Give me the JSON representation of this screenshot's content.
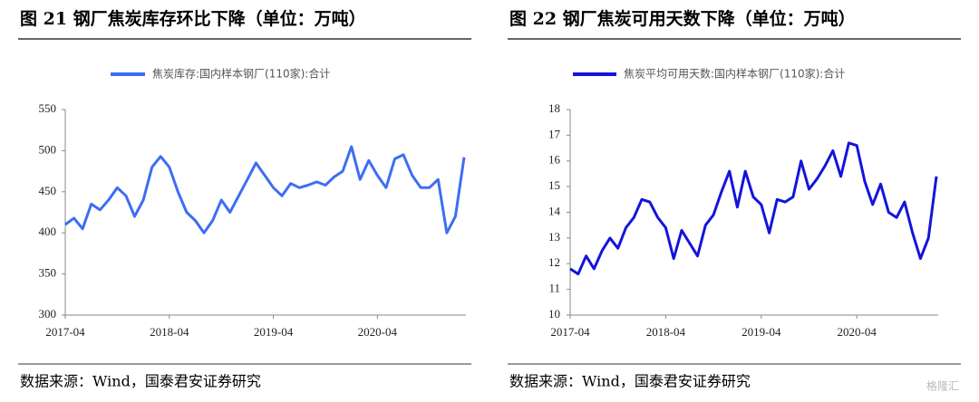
{
  "chart_data": [
    {
      "type": "line",
      "title": "图 21  钢厂焦炭库存环比下降（单位：万吨）",
      "source": "数据来源：Wind，国泰君安证券研究",
      "x": [
        "2017-04",
        "2017-05",
        "2017-06",
        "2017-07",
        "2017-08",
        "2017-09",
        "2017-10",
        "2017-11",
        "2017-12",
        "2018-01",
        "2018-02",
        "2018-03",
        "2018-04",
        "2018-05",
        "2018-06",
        "2018-07",
        "2018-08",
        "2018-09",
        "2018-10",
        "2018-11",
        "2018-12",
        "2019-01",
        "2019-02",
        "2019-03",
        "2019-04",
        "2019-05",
        "2019-06",
        "2019-07",
        "2019-08",
        "2019-09",
        "2019-10",
        "2019-11",
        "2019-12",
        "2020-01",
        "2020-02",
        "2020-03",
        "2020-04",
        "2020-05",
        "2020-06",
        "2020-07",
        "2020-08",
        "2020-09",
        "2020-10",
        "2020-11",
        "2020-12",
        "2021-01",
        "2021-02"
      ],
      "xticks": [
        "2017-04",
        "2018-04",
        "2019-04",
        "2020-04"
      ],
      "ylim": [
        300,
        550
      ],
      "yticks": [
        300,
        350,
        400,
        450,
        500,
        550
      ],
      "series": [
        {
          "name": "焦炭库存:国内样本钢厂(110家):合计",
          "color": "#3d6ef2",
          "values": [
            410,
            418,
            405,
            435,
            428,
            440,
            455,
            445,
            420,
            440,
            480,
            493,
            480,
            450,
            425,
            415,
            400,
            415,
            440,
            425,
            445,
            465,
            485,
            470,
            455,
            445,
            460,
            455,
            458,
            462,
            458,
            468,
            475,
            505,
            465,
            488,
            470,
            455,
            490,
            495,
            470,
            455,
            455,
            465,
            400,
            420,
            492
          ]
        }
      ]
    },
    {
      "type": "line",
      "title": "图 22  钢厂焦炭可用天数下降（单位：万吨）",
      "source": "数据来源：Wind，国泰君安证券研究",
      "x": [
        "2017-04",
        "2017-05",
        "2017-06",
        "2017-07",
        "2017-08",
        "2017-09",
        "2017-10",
        "2017-11",
        "2017-12",
        "2018-01",
        "2018-02",
        "2018-03",
        "2018-04",
        "2018-05",
        "2018-06",
        "2018-07",
        "2018-08",
        "2018-09",
        "2018-10",
        "2018-11",
        "2018-12",
        "2019-01",
        "2019-02",
        "2019-03",
        "2019-04",
        "2019-05",
        "2019-06",
        "2019-07",
        "2019-08",
        "2019-09",
        "2019-10",
        "2019-11",
        "2019-12",
        "2020-01",
        "2020-02",
        "2020-03",
        "2020-04",
        "2020-05",
        "2020-06",
        "2020-07",
        "2020-08",
        "2020-09",
        "2020-10",
        "2020-11",
        "2020-12",
        "2021-01",
        "2021-02"
      ],
      "xticks": [
        "2017-04",
        "2018-04",
        "2019-04",
        "2020-04"
      ],
      "ylim": [
        10,
        18
      ],
      "yticks": [
        10,
        11,
        12,
        13,
        14,
        15,
        16,
        17,
        18
      ],
      "series": [
        {
          "name": "焦炭平均可用天数:国内样本钢厂(110家):合计",
          "color": "#1414dc",
          "values": [
            11.8,
            11.6,
            12.3,
            11.8,
            12.5,
            13.0,
            12.6,
            13.4,
            13.8,
            14.5,
            14.4,
            13.8,
            13.4,
            12.2,
            13.3,
            12.8,
            12.3,
            13.5,
            13.9,
            14.8,
            15.6,
            14.2,
            15.6,
            14.6,
            14.3,
            13.2,
            14.5,
            14.4,
            14.6,
            16.0,
            14.9,
            15.3,
            15.8,
            16.4,
            15.4,
            16.7,
            16.6,
            15.2,
            14.3,
            15.1,
            14.0,
            13.8,
            14.4,
            13.2,
            12.2,
            13.0,
            15.4
          ]
        }
      ]
    }
  ],
  "watermark": "格隆汇"
}
